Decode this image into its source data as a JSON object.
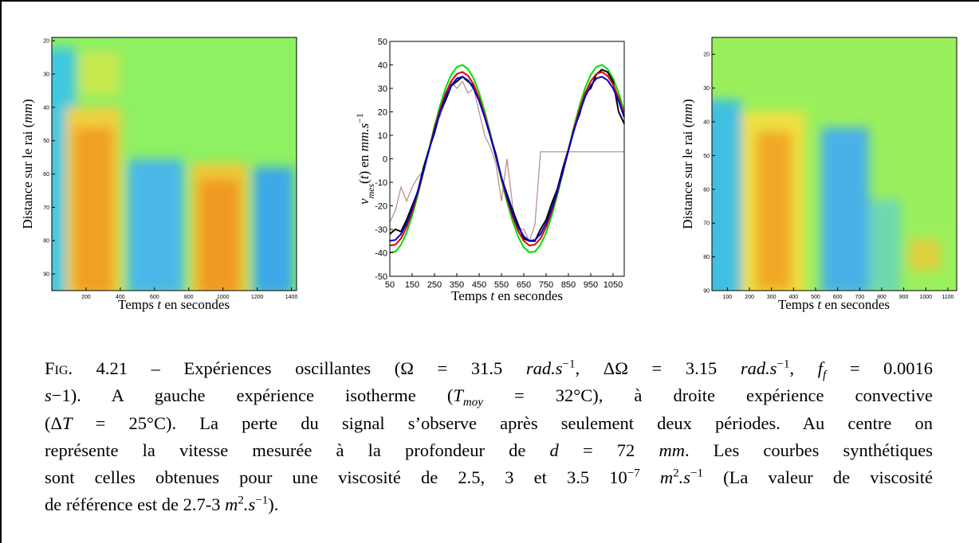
{
  "chart_data": [
    {
      "type": "heatmap",
      "xlabel": [
        "Temps ",
        {
          "i": "t"
        },
        " en secondes"
      ],
      "ylabel": [
        "Distance sur le rai (",
        {
          "i": "mm"
        },
        ")"
      ],
      "xlim": [
        0,
        1430
      ],
      "xticks": [
        200,
        400,
        600,
        800,
        1000,
        1200,
        1400
      ],
      "ylim": [
        19,
        95
      ],
      "yticks": [
        20,
        30,
        40,
        50,
        60,
        70,
        80,
        90
      ]
    },
    {
      "type": "line",
      "xlabel": [
        "Temps ",
        {
          "i": "t"
        },
        " en secondes"
      ],
      "ylabel": [
        {
          "i": "v"
        },
        {
          "sub": "mes"
        },
        "(",
        {
          "i": "t"
        },
        ") en ",
        {
          "i": "mm.s"
        },
        {
          "sup": "−1"
        }
      ],
      "xlim": [
        50,
        1100
      ],
      "xticks": [
        50,
        150,
        250,
        350,
        450,
        550,
        650,
        750,
        850,
        950,
        1050
      ],
      "ylim": [
        -50,
        50
      ],
      "yticks": [
        -50,
        -40,
        -30,
        -20,
        -10,
        0,
        10,
        20,
        30,
        40,
        50
      ],
      "x": [
        50,
        75,
        100,
        125,
        150,
        175,
        200,
        225,
        250,
        275,
        300,
        325,
        350,
        375,
        400,
        425,
        450,
        475,
        500,
        525,
        550,
        575,
        600,
        625,
        650,
        675,
        700,
        725,
        750,
        775,
        800,
        825,
        850,
        875,
        900,
        925,
        950,
        975,
        1000,
        1025,
        1050,
        1075,
        1100
      ],
      "series": [
        {
          "color": "#b08c88",
          "values": [
            -27,
            -22,
            -12,
            -18,
            -12,
            -8,
            -5,
            3,
            15,
            18,
            25,
            33,
            30,
            33,
            28,
            30,
            20,
            10,
            5,
            -2,
            -18,
            0,
            -20,
            -30,
            -30,
            -35,
            -28,
            3,
            3,
            3,
            3,
            3,
            3,
            3,
            3,
            3,
            3,
            3,
            3,
            3,
            3,
            3,
            3
          ]
        },
        {
          "color": "#00dd00",
          "values": [
            -39.8,
            -39.5,
            -36.6,
            -31.5,
            -24.3,
            -15.6,
            -6.0,
            4.0,
            13.8,
            22.7,
            30.2,
            35.8,
            39.1,
            40.0,
            38.3,
            34.3,
            28.1,
            20.2,
            10.9,
            1.0,
            -9.0,
            -18.4,
            -26.6,
            -33.2,
            -37.7,
            -39.8,
            -39.5,
            -36.6,
            -31.5,
            -24.3,
            -15.6,
            -6.0,
            4.0,
            13.8,
            22.7,
            30.2,
            35.8,
            39.1,
            40.0,
            38.3,
            34.3,
            28.1,
            20.2
          ]
        },
        {
          "color": "#000000",
          "values": [
            -32,
            -30,
            -31,
            -26,
            -20,
            -14,
            -4,
            4,
            11,
            20,
            25,
            31,
            33,
            35,
            33,
            31,
            25,
            18,
            10,
            2,
            -8,
            -15,
            -22,
            -28,
            -34,
            -35,
            -35,
            -30,
            -26,
            -19,
            -13,
            -4,
            4,
            13,
            19,
            28,
            30,
            36,
            38,
            37,
            33,
            20,
            15
          ]
        },
        {
          "color": "#e00000",
          "values": [
            -36.9,
            -36.5,
            -33.9,
            -29.1,
            -22.5,
            -14.5,
            -5.6,
            3.7,
            12.8,
            21.0,
            27.9,
            33.1,
            36.1,
            37.0,
            35.4,
            31.7,
            26.0,
            18.6,
            10.1,
            0.9,
            -8.3,
            -17.0,
            -24.6,
            -30.7,
            -34.9,
            -36.9,
            -36.5,
            -33.9,
            -29.1,
            -22.5,
            -14.5,
            -5.6,
            3.7,
            12.8,
            21.0,
            27.9,
            33.1,
            36.1,
            37.0,
            35.4,
            31.7,
            26.0,
            18.6
          ]
        },
        {
          "color": "#0000cc",
          "values": [
            -34.9,
            -34.5,
            -32.0,
            -27.5,
            -21.3,
            -13.7,
            -5.3,
            3.5,
            12.1,
            19.8,
            26.4,
            31.3,
            34.2,
            35.0,
            33.5,
            30.0,
            24.6,
            17.6,
            9.6,
            0.9,
            -7.8,
            -16.1,
            -23.3,
            -29.1,
            -33.0,
            -34.9,
            -34.5,
            -32.0,
            -27.5,
            -21.3,
            -13.7,
            -5.3,
            3.5,
            12.1,
            19.8,
            26.4,
            31.3,
            34.2,
            35.0,
            33.5,
            30.0,
            24.6,
            17.6
          ]
        }
      ]
    },
    {
      "type": "heatmap",
      "xlabel": [
        "Temps ",
        {
          "i": "t"
        },
        " en secondes"
      ],
      "ylabel": [
        "Distance sur le rai (",
        {
          "i": "mm"
        },
        ")"
      ],
      "xlim": [
        30,
        1140
      ],
      "xticks": [
        100,
        200,
        300,
        400,
        500,
        600,
        700,
        800,
        900,
        1000,
        1100
      ],
      "ylim": [
        15,
        90
      ],
      "yticks": [
        20,
        30,
        40,
        50,
        60,
        70,
        80,
        90
      ]
    }
  ],
  "caption": {
    "lines": [
      [
        {
          "sc": "Fig."
        },
        " 4.21 – Expériences oscillantes (Ω = 31.5 ",
        {
          "i": "rad.s"
        },
        {
          "sup": "−1"
        },
        ", ΔΩ = 3.15 ",
        {
          "i": "rad.s"
        },
        {
          "sup": "−1"
        },
        ", ",
        {
          "i": "f"
        },
        {
          "sub": "f"
        },
        " = 0.0016"
      ],
      [
        {
          "i": "s"
        },
        "−1). A gauche expérience isotherme (",
        {
          "i": "T"
        },
        {
          "sub": "moy"
        },
        " = 32°C), à droite expérience convective"
      ],
      [
        "(Δ",
        {
          "i": "T"
        },
        " = 25°C). La perte du signal s’observe après seulement deux périodes. Au centre on"
      ],
      [
        "représente la vitesse mesurée à la profondeur de ",
        {
          "i": "d"
        },
        " = 72 ",
        {
          "i": "mm"
        },
        ". Les courbes synthétiques"
      ],
      [
        "sont celles obtenues pour une viscosité de 2.5, 3 et 3.5 10",
        {
          "sup": "−7"
        },
        " ",
        {
          "i": "m"
        },
        {
          "sup": "2"
        },
        {
          "i": ".s"
        },
        {
          "sup": "−1"
        },
        " (La valeur de viscosité"
      ],
      [
        "de référence est de 2.7-3 ",
        {
          "i": "m"
        },
        {
          "sup": "2"
        },
        {
          "i": ".s"
        },
        {
          "sup": "−1"
        },
        ")."
      ]
    ]
  }
}
